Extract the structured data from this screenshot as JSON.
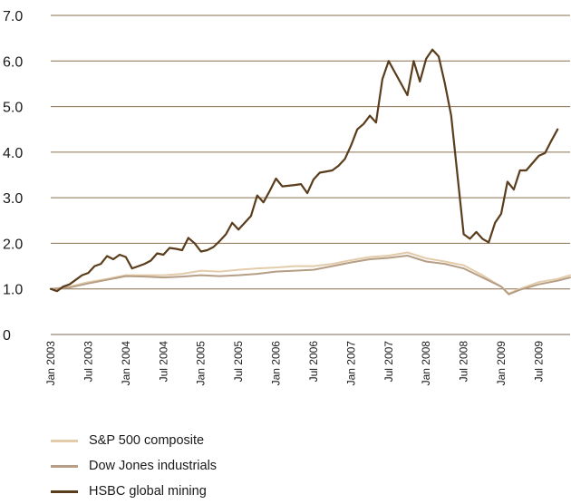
{
  "chart_data": {
    "type": "line",
    "ylim": [
      0,
      7
    ],
    "yticks": [
      "0",
      "1.0",
      "2.0",
      "3.0",
      "4.0",
      "5.0",
      "6.0",
      "7.0"
    ],
    "ytick_values": [
      0,
      1,
      2,
      3,
      4,
      5,
      6,
      7
    ],
    "xlim": [
      2003.0,
      2009.917
    ],
    "xticks": [
      "Jan 2003",
      "Jul 2003",
      "Jan 2004",
      "Jul 2004",
      "Jan 2005",
      "Jul 2005",
      "Jan 2006",
      "Jul 2006",
      "Jan 2007",
      "Jul 2007",
      "Jan 2008",
      "Jul 2008",
      "Jan 2009",
      "Jul 2009"
    ],
    "xtick_values": [
      2003.0,
      2003.5,
      2004.0,
      2004.5,
      2005.0,
      2005.5,
      2006.0,
      2006.5,
      2007.0,
      2007.5,
      2008.0,
      2008.5,
      2009.0,
      2009.5
    ],
    "grid": "horizontal",
    "legend_position": "bottom-left",
    "series": [
      {
        "name": "S&P 500 composite",
        "color": "#e3ccab",
        "points": [
          [
            2003.0,
            1.0
          ],
          [
            2003.25,
            1.05
          ],
          [
            2003.5,
            1.15
          ],
          [
            2003.75,
            1.22
          ],
          [
            2004.0,
            1.3
          ],
          [
            2004.25,
            1.3
          ],
          [
            2004.5,
            1.3
          ],
          [
            2004.75,
            1.33
          ],
          [
            2005.0,
            1.4
          ],
          [
            2005.25,
            1.38
          ],
          [
            2005.5,
            1.42
          ],
          [
            2005.75,
            1.45
          ],
          [
            2006.0,
            1.47
          ],
          [
            2006.25,
            1.5
          ],
          [
            2006.5,
            1.5
          ],
          [
            2006.75,
            1.55
          ],
          [
            2007.0,
            1.63
          ],
          [
            2007.25,
            1.7
          ],
          [
            2007.5,
            1.73
          ],
          [
            2007.75,
            1.8
          ],
          [
            2008.0,
            1.67
          ],
          [
            2008.25,
            1.6
          ],
          [
            2008.5,
            1.52
          ],
          [
            2008.75,
            1.3
          ],
          [
            2009.0,
            1.05
          ],
          [
            2009.1,
            0.9
          ],
          [
            2009.25,
            1.0
          ],
          [
            2009.5,
            1.15
          ],
          [
            2009.75,
            1.22
          ],
          [
            2009.917,
            1.3
          ]
        ]
      },
      {
        "name": "Dow Jones industrials",
        "color": "#b59e85",
        "points": [
          [
            2003.0,
            1.0
          ],
          [
            2003.25,
            1.03
          ],
          [
            2003.5,
            1.12
          ],
          [
            2003.75,
            1.2
          ],
          [
            2004.0,
            1.28
          ],
          [
            2004.25,
            1.27
          ],
          [
            2004.5,
            1.25
          ],
          [
            2004.75,
            1.27
          ],
          [
            2005.0,
            1.3
          ],
          [
            2005.25,
            1.28
          ],
          [
            2005.5,
            1.3
          ],
          [
            2005.75,
            1.33
          ],
          [
            2006.0,
            1.38
          ],
          [
            2006.25,
            1.4
          ],
          [
            2006.5,
            1.42
          ],
          [
            2006.75,
            1.5
          ],
          [
            2007.0,
            1.58
          ],
          [
            2007.25,
            1.65
          ],
          [
            2007.5,
            1.68
          ],
          [
            2007.75,
            1.73
          ],
          [
            2008.0,
            1.6
          ],
          [
            2008.25,
            1.55
          ],
          [
            2008.5,
            1.45
          ],
          [
            2008.75,
            1.25
          ],
          [
            2009.0,
            1.05
          ],
          [
            2009.1,
            0.88
          ],
          [
            2009.25,
            0.98
          ],
          [
            2009.5,
            1.1
          ],
          [
            2009.75,
            1.18
          ],
          [
            2009.917,
            1.25
          ]
        ]
      },
      {
        "name": "HSBC global mining",
        "color": "#5a3d1c",
        "points": [
          [
            2003.0,
            1.0
          ],
          [
            2003.083,
            0.95
          ],
          [
            2003.167,
            1.05
          ],
          [
            2003.25,
            1.1
          ],
          [
            2003.333,
            1.2
          ],
          [
            2003.417,
            1.3
          ],
          [
            2003.5,
            1.35
          ],
          [
            2003.583,
            1.5
          ],
          [
            2003.667,
            1.55
          ],
          [
            2003.75,
            1.72
          ],
          [
            2003.833,
            1.65
          ],
          [
            2003.917,
            1.75
          ],
          [
            2004.0,
            1.7
          ],
          [
            2004.083,
            1.45
          ],
          [
            2004.167,
            1.5
          ],
          [
            2004.25,
            1.55
          ],
          [
            2004.333,
            1.62
          ],
          [
            2004.417,
            1.78
          ],
          [
            2004.5,
            1.75
          ],
          [
            2004.583,
            1.9
          ],
          [
            2004.667,
            1.88
          ],
          [
            2004.75,
            1.85
          ],
          [
            2004.833,
            2.12
          ],
          [
            2004.917,
            2.0
          ],
          [
            2005.0,
            1.82
          ],
          [
            2005.083,
            1.85
          ],
          [
            2005.167,
            1.92
          ],
          [
            2005.25,
            2.05
          ],
          [
            2005.333,
            2.2
          ],
          [
            2005.417,
            2.45
          ],
          [
            2005.5,
            2.3
          ],
          [
            2005.583,
            2.45
          ],
          [
            2005.667,
            2.6
          ],
          [
            2005.75,
            3.05
          ],
          [
            2005.833,
            2.9
          ],
          [
            2005.917,
            3.15
          ],
          [
            2006.0,
            3.42
          ],
          [
            2006.083,
            3.25
          ],
          [
            2006.25,
            3.28
          ],
          [
            2006.333,
            3.3
          ],
          [
            2006.417,
            3.1
          ],
          [
            2006.5,
            3.4
          ],
          [
            2006.583,
            3.55
          ],
          [
            2006.75,
            3.6
          ],
          [
            2006.833,
            3.7
          ],
          [
            2006.917,
            3.85
          ],
          [
            2007.0,
            4.15
          ],
          [
            2007.083,
            4.5
          ],
          [
            2007.167,
            4.62
          ],
          [
            2007.25,
            4.8
          ],
          [
            2007.333,
            4.65
          ],
          [
            2007.417,
            5.6
          ],
          [
            2007.5,
            6.0
          ],
          [
            2007.583,
            5.75
          ],
          [
            2007.667,
            5.5
          ],
          [
            2007.75,
            5.25
          ],
          [
            2007.833,
            6.0
          ],
          [
            2007.917,
            5.55
          ],
          [
            2008.0,
            6.05
          ],
          [
            2008.083,
            6.25
          ],
          [
            2008.167,
            6.1
          ],
          [
            2008.25,
            5.5
          ],
          [
            2008.333,
            4.8
          ],
          [
            2008.417,
            3.5
          ],
          [
            2008.5,
            2.2
          ],
          [
            2008.583,
            2.1
          ],
          [
            2008.667,
            2.25
          ],
          [
            2008.75,
            2.1
          ],
          [
            2008.833,
            2.02
          ],
          [
            2008.917,
            2.45
          ],
          [
            2009.0,
            2.65
          ],
          [
            2009.083,
            3.35
          ],
          [
            2009.167,
            3.18
          ],
          [
            2009.25,
            3.6
          ],
          [
            2009.333,
            3.6
          ],
          [
            2009.5,
            3.92
          ],
          [
            2009.583,
            3.98
          ],
          [
            2009.667,
            4.25
          ],
          [
            2009.75,
            4.5
          ]
        ]
      }
    ]
  }
}
